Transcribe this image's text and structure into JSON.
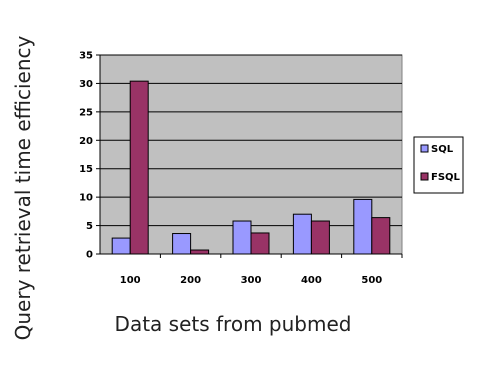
{
  "chart_data": {
    "type": "bar",
    "title": "",
    "xlabel": "Data sets from pubmed",
    "ylabel": "Query retrieval time efficiency",
    "categories": [
      "100",
      "200",
      "300",
      "400",
      "500"
    ],
    "series": [
      {
        "name": "SQL",
        "values": [
          2.8,
          3.6,
          5.8,
          7.0,
          9.6
        ],
        "color": "#9999ff"
      },
      {
        "name": "FSQL",
        "values": [
          30.4,
          0.7,
          3.7,
          5.8,
          6.4
        ],
        "color": "#993366"
      }
    ],
    "ylim": [
      0,
      35
    ],
    "yticks": [
      "0",
      "5",
      "10",
      "15",
      "20",
      "25",
      "30",
      "35"
    ],
    "grid": true,
    "legend_position": "right",
    "plot_background": "#c0c0c0"
  }
}
